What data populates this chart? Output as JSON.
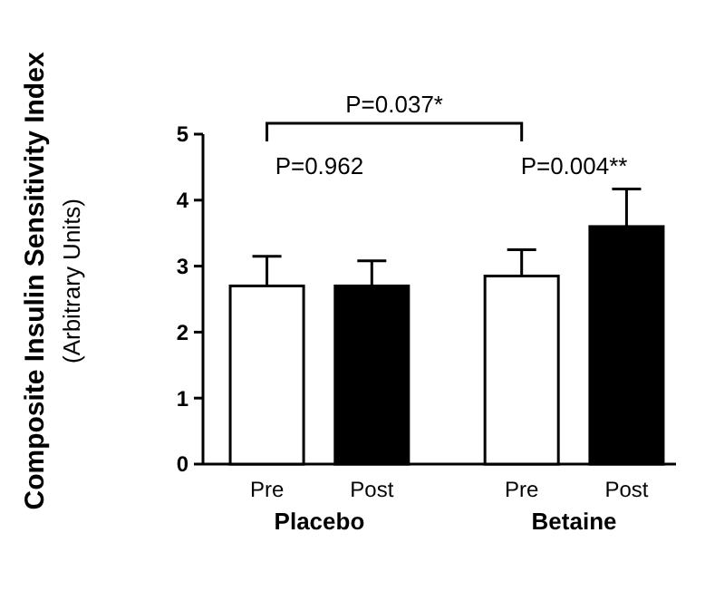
{
  "chart_data": {
    "type": "bar",
    "ylabel": "Composite Insulin Sensitivity Index\n(Arbitrary Units)",
    "categories": [
      "Placebo",
      "Betaine"
    ],
    "series": [
      {
        "name": "Pre",
        "color": "#ffffff",
        "values": [
          2.7,
          2.85
        ],
        "errors": [
          0.45,
          0.4
        ]
      },
      {
        "name": "Post",
        "color": "#000000",
        "values": [
          2.7,
          3.6
        ],
        "errors": [
          0.38,
          0.57
        ]
      }
    ],
    "ylim": [
      0,
      5
    ],
    "yticks": [
      0,
      1,
      2,
      3,
      4,
      5
    ],
    "grid": false,
    "annotations": [
      "P=0.962",
      "P=0.004**",
      "P=0.037*"
    ]
  }
}
